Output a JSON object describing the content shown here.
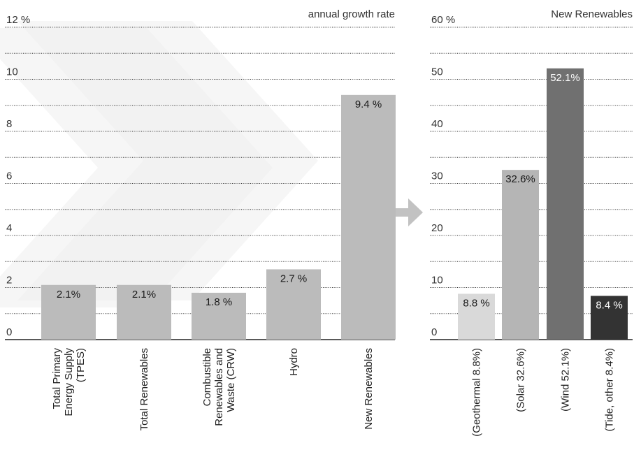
{
  "colors": {
    "background_chevrons": "#eeeeee",
    "gridline": "#333333",
    "axis": "#222222",
    "left_bars": "#bbbbbb",
    "arrow": "#c2c2c2",
    "geothermal": "#d9d9d9",
    "solar": "#b5b5b5",
    "wind": "#707070",
    "tide_other": "#333333"
  },
  "icons": {
    "arrow": "right-arrow-icon"
  },
  "chart_data": [
    {
      "type": "bar",
      "title": "annual growth rate",
      "unit": "%",
      "categories": [
        "Total Primary Energy Supply (TPES)",
        "Total Renewables",
        "Combustible Renewables and Waste (CRW)",
        "Hydro",
        "New Renewables"
      ],
      "category_lines": [
        [
          "Total Primary",
          "Energy Supply",
          "(TPES)"
        ],
        [
          "Total Renewables"
        ],
        [
          "Combustible",
          "Renewables and",
          "Waste (CRW)"
        ],
        [
          "Hydro"
        ],
        [
          "New Renewables"
        ]
      ],
      "values": [
        2.1,
        2.1,
        1.8,
        2.7,
        9.4
      ],
      "data_labels": [
        "2.1%",
        "2.1%",
        "1.8 %",
        "2.7 %",
        "9.4 %"
      ],
      "ylim": [
        0,
        12
      ],
      "yticks": [
        0,
        2,
        4,
        6,
        8,
        10,
        12
      ],
      "ytick_labels": [
        "0",
        "2",
        "4",
        "6",
        "8",
        "10",
        "12 %"
      ],
      "grid": true
    },
    {
      "type": "bar",
      "title": "New Renewables",
      "unit": "%",
      "categories": [
        "(Geothermal 8.8%)",
        "(Solar 32.6%)",
        "(Wind 52.1%)",
        "(Tide, other 8.4%)"
      ],
      "values": [
        8.8,
        32.6,
        52.1,
        8.4
      ],
      "data_labels": [
        "8.8 %",
        "32.6%",
        "52.1%",
        "8.4 %"
      ],
      "bar_colors": [
        "#d9d9d9",
        "#b5b5b5",
        "#707070",
        "#333333"
      ],
      "label_colors": [
        "#1a1a1a",
        "#1a1a1a",
        "#ffffff",
        "#ffffff"
      ],
      "ylim": [
        0,
        60
      ],
      "yticks": [
        0,
        10,
        20,
        30,
        40,
        50,
        60
      ],
      "ytick_labels": [
        "0",
        "10",
        "20",
        "30",
        "40",
        "50",
        "60 %"
      ],
      "grid": true
    }
  ]
}
